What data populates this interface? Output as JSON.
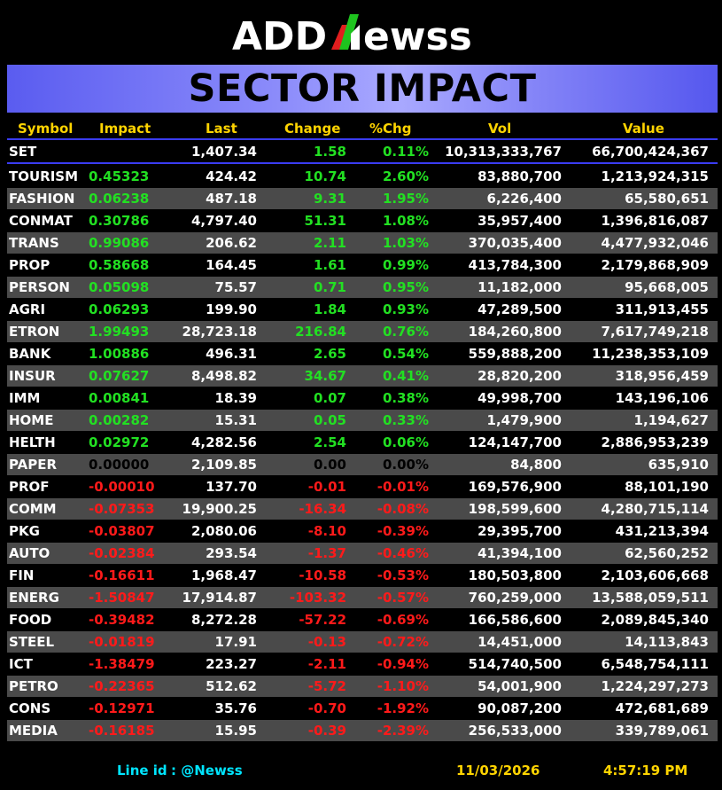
{
  "brand": {
    "part1": "ADD",
    "part2": "ewss",
    "mark": "N",
    "accent": "#1ec31e",
    "accent2": "#e01e1e"
  },
  "title": "SECTOR IMPACT",
  "columns": [
    "Symbol",
    "Impact",
    "Last",
    "Change",
    "%Chg",
    "Vol",
    "Value"
  ],
  "index_row": {
    "symbol": "SET",
    "impact": "",
    "last": "1,407.34",
    "change": "1.58",
    "pct": "0.11%",
    "vol": "10,313,333,767",
    "value": "66,700,424,367"
  },
  "rows": [
    {
      "symbol": "TOURISM",
      "impact": "0.45323",
      "last": "424.42",
      "change": "10.74",
      "pct": "2.60%",
      "vol": "83,880,700",
      "value": "1,213,924,315",
      "dir": "pos"
    },
    {
      "symbol": "FASHION",
      "impact": "0.06238",
      "last": "487.18",
      "change": "9.31",
      "pct": "1.95%",
      "vol": "6,226,400",
      "value": "65,580,651",
      "dir": "pos"
    },
    {
      "symbol": "CONMAT",
      "impact": "0.30786",
      "last": "4,797.40",
      "change": "51.31",
      "pct": "1.08%",
      "vol": "35,957,400",
      "value": "1,396,816,087",
      "dir": "pos"
    },
    {
      "symbol": "TRANS",
      "impact": "0.99086",
      "last": "206.62",
      "change": "2.11",
      "pct": "1.03%",
      "vol": "370,035,400",
      "value": "4,477,932,046",
      "dir": "pos"
    },
    {
      "symbol": "PROP",
      "impact": "0.58668",
      "last": "164.45",
      "change": "1.61",
      "pct": "0.99%",
      "vol": "413,784,300",
      "value": "2,179,868,909",
      "dir": "pos"
    },
    {
      "symbol": "PERSON",
      "impact": "0.05098",
      "last": "75.57",
      "change": "0.71",
      "pct": "0.95%",
      "vol": "11,182,000",
      "value": "95,668,005",
      "dir": "pos"
    },
    {
      "symbol": "AGRI",
      "impact": "0.06293",
      "last": "199.90",
      "change": "1.84",
      "pct": "0.93%",
      "vol": "47,289,500",
      "value": "311,913,455",
      "dir": "pos"
    },
    {
      "symbol": "ETRON",
      "impact": "1.99493",
      "last": "28,723.18",
      "change": "216.84",
      "pct": "0.76%",
      "vol": "184,260,800",
      "value": "7,617,749,218",
      "dir": "pos"
    },
    {
      "symbol": "BANK",
      "impact": "1.00886",
      "last": "496.31",
      "change": "2.65",
      "pct": "0.54%",
      "vol": "559,888,200",
      "value": "11,238,353,109",
      "dir": "pos"
    },
    {
      "symbol": "INSUR",
      "impact": "0.07627",
      "last": "8,498.82",
      "change": "34.67",
      "pct": "0.41%",
      "vol": "28,820,200",
      "value": "318,956,459",
      "dir": "pos"
    },
    {
      "symbol": "IMM",
      "impact": "0.00841",
      "last": "18.39",
      "change": "0.07",
      "pct": "0.38%",
      "vol": "49,998,700",
      "value": "143,196,106",
      "dir": "pos"
    },
    {
      "symbol": "HOME",
      "impact": "0.00282",
      "last": "15.31",
      "change": "0.05",
      "pct": "0.33%",
      "vol": "1,479,900",
      "value": "1,194,627",
      "dir": "pos"
    },
    {
      "symbol": "HELTH",
      "impact": "0.02972",
      "last": "4,282.56",
      "change": "2.54",
      "pct": "0.06%",
      "vol": "124,147,700",
      "value": "2,886,953,239",
      "dir": "pos"
    },
    {
      "symbol": "PAPER",
      "impact": "0.00000",
      "last": "2,109.85",
      "change": "0.00",
      "pct": "0.00%",
      "vol": "84,800",
      "value": "635,910",
      "dir": "zero"
    },
    {
      "symbol": "PROF",
      "impact": "-0.00010",
      "last": "137.70",
      "change": "-0.01",
      "pct": "-0.01%",
      "vol": "169,576,900",
      "value": "88,101,190",
      "dir": "neg"
    },
    {
      "symbol": "COMM",
      "impact": "-0.07353",
      "last": "19,900.25",
      "change": "-16.34",
      "pct": "-0.08%",
      "vol": "198,599,600",
      "value": "4,280,715,114",
      "dir": "neg"
    },
    {
      "symbol": "PKG",
      "impact": "-0.03807",
      "last": "2,080.06",
      "change": "-8.10",
      "pct": "-0.39%",
      "vol": "29,395,700",
      "value": "431,213,394",
      "dir": "neg"
    },
    {
      "symbol": "AUTO",
      "impact": "-0.02384",
      "last": "293.54",
      "change": "-1.37",
      "pct": "-0.46%",
      "vol": "41,394,100",
      "value": "62,560,252",
      "dir": "neg"
    },
    {
      "symbol": "FIN",
      "impact": "-0.16611",
      "last": "1,968.47",
      "change": "-10.58",
      "pct": "-0.53%",
      "vol": "180,503,800",
      "value": "2,103,606,668",
      "dir": "neg"
    },
    {
      "symbol": "ENERG",
      "impact": "-1.50847",
      "last": "17,914.87",
      "change": "-103.32",
      "pct": "-0.57%",
      "vol": "760,259,000",
      "value": "13,588,059,511",
      "dir": "neg"
    },
    {
      "symbol": "FOOD",
      "impact": "-0.39482",
      "last": "8,272.28",
      "change": "-57.22",
      "pct": "-0.69%",
      "vol": "166,586,600",
      "value": "2,089,845,340",
      "dir": "neg"
    },
    {
      "symbol": "STEEL",
      "impact": "-0.01819",
      "last": "17.91",
      "change": "-0.13",
      "pct": "-0.72%",
      "vol": "14,451,000",
      "value": "14,113,843",
      "dir": "neg"
    },
    {
      "symbol": "ICT",
      "impact": "-1.38479",
      "last": "223.27",
      "change": "-2.11",
      "pct": "-0.94%",
      "vol": "514,740,500",
      "value": "6,548,754,111",
      "dir": "neg"
    },
    {
      "symbol": "PETRO",
      "impact": "-0.22365",
      "last": "512.62",
      "change": "-5.72",
      "pct": "-1.10%",
      "vol": "54,001,900",
      "value": "1,224,297,273",
      "dir": "neg"
    },
    {
      "symbol": "CONS",
      "impact": "-0.12971",
      "last": "35.76",
      "change": "-0.70",
      "pct": "-1.92%",
      "vol": "90,087,200",
      "value": "472,681,689",
      "dir": "neg"
    },
    {
      "symbol": "MEDIA",
      "impact": "-0.16185",
      "last": "15.95",
      "change": "-0.39",
      "pct": "-2.39%",
      "vol": "256,533,000",
      "value": "339,789,061",
      "dir": "neg"
    }
  ],
  "footer": {
    "line_label": "Line id",
    "line_id": ": @Newss",
    "date": "11/03/2026",
    "time": "4:57:19 PM"
  },
  "colors": {
    "positive": "#22e022",
    "negative": "#ff1a1a",
    "header": "#ffd400",
    "footer_label": "#00e5ff",
    "footer_date": "#ffd400",
    "banner": "#7b7df7"
  }
}
